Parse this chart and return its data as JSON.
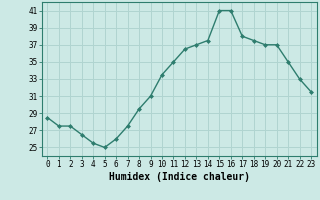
{
  "x": [
    0,
    1,
    2,
    3,
    4,
    5,
    6,
    7,
    8,
    9,
    10,
    11,
    12,
    13,
    14,
    15,
    16,
    17,
    18,
    19,
    20,
    21,
    22,
    23
  ],
  "y": [
    28.5,
    27.5,
    27.5,
    26.5,
    25.5,
    25.0,
    26.0,
    27.5,
    29.5,
    31.0,
    33.5,
    35.0,
    36.5,
    37.0,
    37.5,
    41.0,
    41.0,
    38.0,
    37.5,
    37.0,
    37.0,
    35.0,
    33.0,
    31.5
  ],
  "line_color": "#2e7d6e",
  "marker": "D",
  "marker_size": 2.0,
  "line_width": 1.0,
  "xlabel": "Humidex (Indice chaleur)",
  "xlabel_fontsize": 7,
  "xlabel_weight": "bold",
  "ylim": [
    24,
    42
  ],
  "xlim": [
    -0.5,
    23.5
  ],
  "yticks": [
    25,
    27,
    29,
    31,
    33,
    35,
    37,
    39,
    41
  ],
  "xtick_labels": [
    "0",
    "1",
    "2",
    "3",
    "4",
    "5",
    "6",
    "7",
    "8",
    "9",
    "10",
    "11",
    "12",
    "13",
    "14",
    "15",
    "16",
    "17",
    "18",
    "19",
    "20",
    "21",
    "22",
    "23"
  ],
  "bg_color": "#cce9e5",
  "grid_color": "#b0d4d0",
  "tick_fontsize": 5.5,
  "spine_color": "#2e7d6e"
}
